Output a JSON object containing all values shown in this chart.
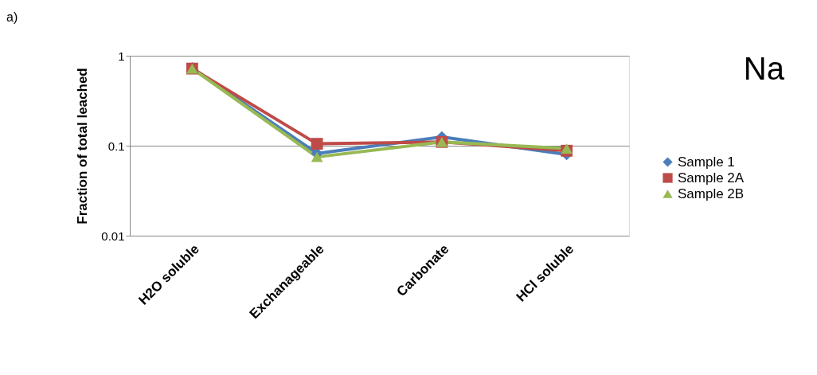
{
  "chart_data": {
    "type": "line",
    "ylabel": "Fraction of total leached",
    "annotations": [
      "a)",
      "Na"
    ],
    "categories": [
      "H2O soluble",
      "Exchanageable",
      "Carbonate",
      "HCl soluble"
    ],
    "series": [
      {
        "name": "Sample 1",
        "color": "#4a7ebb",
        "marker": "diamond",
        "values": [
          0.73,
          0.082,
          0.125,
          0.08
        ]
      },
      {
        "name": "Sample 2A",
        "color": "#be4b48",
        "marker": "square",
        "values": [
          0.72,
          0.105,
          0.11,
          0.088
        ]
      },
      {
        "name": "Sample 2B",
        "color": "#98b954",
        "marker": "triangle",
        "values": [
          0.72,
          0.075,
          0.11,
          0.093
        ]
      }
    ],
    "log": "y",
    "ylim": [
      0.01,
      1
    ],
    "yticks": [
      0.01,
      0.1,
      1
    ],
    "grid": "y",
    "legend": "right",
    "line_style": "solid"
  }
}
